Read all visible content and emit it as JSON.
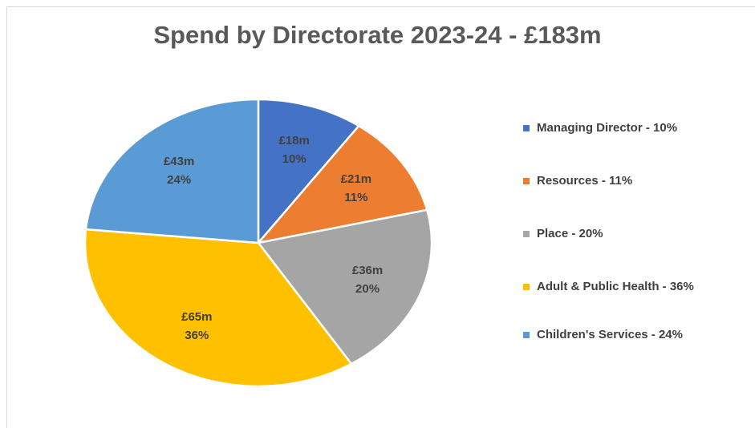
{
  "chart_data": {
    "type": "pie",
    "title": "Spend by Directorate 2023-24 - £183m",
    "categories": [
      "Managing Director - 10%",
      "Resources - 11%",
      "Place - 20%",
      "Adult & Public Health - 36%",
      "Children's Services - 24%"
    ],
    "values": [
      18,
      21,
      36,
      65,
      43
    ],
    "value_labels": [
      "£18m",
      "£21m",
      "£36m",
      "£65m",
      "£43m"
    ],
    "percentages": [
      10,
      11,
      20,
      36,
      24
    ],
    "percentage_labels": [
      "10%",
      "11%",
      "20%",
      "36%",
      "24%"
    ],
    "colors": [
      "#4472c4",
      "#ed7d31",
      "#a5a5a5",
      "#ffc000",
      "#5b9bd5"
    ],
    "legend": "right"
  }
}
